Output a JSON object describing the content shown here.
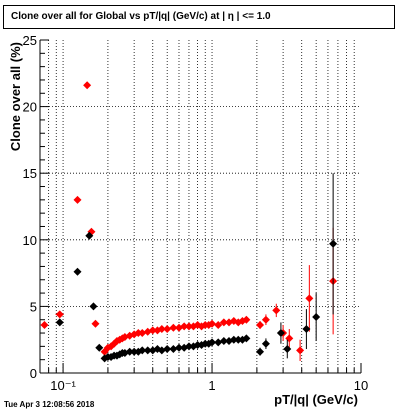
{
  "chart_data": {
    "type": "scatter",
    "title": "Clone  over all for Global vs pT/|q| (GeV/c) at |  η | <= 1.0",
    "xlabel": "pT/|q| (GeV/c)",
    "ylabel": "Clone  over all (%)",
    "xscale": "log",
    "xlim": [
      0.07,
      10
    ],
    "ylim": [
      0,
      25
    ],
    "grid": true,
    "x_tick_labels": [
      {
        "v": 0.1,
        "t": "10⁻¹"
      },
      {
        "v": 1,
        "t": "1"
      },
      {
        "v": 10,
        "t": "10"
      }
    ],
    "y_ticks": [
      0,
      5,
      10,
      15,
      20,
      25
    ],
    "series": [
      {
        "color": "#ff0000",
        "points": [
          {
            "x": 0.075,
            "y": 3.6,
            "xerr": 0.004
          },
          {
            "x": 0.095,
            "y": 4.4,
            "xerr": 0.006
          },
          {
            "x": 0.125,
            "y": 13.0,
            "xerr": 0.006
          },
          {
            "x": 0.145,
            "y": 21.6,
            "xerr": 0
          },
          {
            "x": 0.155,
            "y": 10.6,
            "xerr": 0
          },
          {
            "x": 0.165,
            "y": 3.7,
            "xerr": 0
          },
          {
            "x": 0.19,
            "y": 1.6
          },
          {
            "x": 0.2,
            "y": 1.9
          },
          {
            "x": 0.21,
            "y": 2.0
          },
          {
            "x": 0.22,
            "y": 2.2
          },
          {
            "x": 0.23,
            "y": 2.4
          },
          {
            "x": 0.24,
            "y": 2.5
          },
          {
            "x": 0.25,
            "y": 2.6
          },
          {
            "x": 0.26,
            "y": 2.7
          },
          {
            "x": 0.28,
            "y": 2.8
          },
          {
            "x": 0.3,
            "y": 2.9
          },
          {
            "x": 0.32,
            "y": 3.0
          },
          {
            "x": 0.34,
            "y": 3.0
          },
          {
            "x": 0.37,
            "y": 3.1
          },
          {
            "x": 0.4,
            "y": 3.2
          },
          {
            "x": 0.43,
            "y": 3.2
          },
          {
            "x": 0.46,
            "y": 3.3
          },
          {
            "x": 0.5,
            "y": 3.3
          },
          {
            "x": 0.55,
            "y": 3.4
          },
          {
            "x": 0.6,
            "y": 3.4
          },
          {
            "x": 0.65,
            "y": 3.5
          },
          {
            "x": 0.7,
            "y": 3.5
          },
          {
            "x": 0.75,
            "y": 3.5
          },
          {
            "x": 0.8,
            "y": 3.6
          },
          {
            "x": 0.85,
            "y": 3.5
          },
          {
            "x": 0.9,
            "y": 3.6
          },
          {
            "x": 0.95,
            "y": 3.6
          },
          {
            "x": 1.0,
            "y": 3.7
          },
          {
            "x": 1.1,
            "y": 3.6
          },
          {
            "x": 1.2,
            "y": 3.8
          },
          {
            "x": 1.3,
            "y": 3.8
          },
          {
            "x": 1.4,
            "y": 3.9
          },
          {
            "x": 1.5,
            "y": 3.8
          },
          {
            "x": 1.6,
            "y": 3.9
          },
          {
            "x": 1.7,
            "y": 4.0
          },
          {
            "x": 2.1,
            "y": 3.6,
            "yerr": 0.3
          },
          {
            "x": 2.3,
            "y": 4.0,
            "yerr": 0.4
          },
          {
            "x": 2.7,
            "y": 4.7,
            "yerr": 0.5
          },
          {
            "x": 3.0,
            "y": 3.0,
            "yerr": 0.6
          },
          {
            "x": 3.3,
            "y": 2.6,
            "yerr": 0.7
          },
          {
            "x": 3.9,
            "y": 1.7,
            "yerr": 0.8
          },
          {
            "x": 4.5,
            "y": 5.6,
            "yerr": 2.5
          },
          {
            "x": 6.5,
            "y": 6.9,
            "yerr": 4.0
          }
        ]
      },
      {
        "color": "#000000",
        "points": [
          {
            "x": 0.095,
            "y": 3.8,
            "xerr": 0.006
          },
          {
            "x": 0.125,
            "y": 7.6,
            "xerr": 0.006
          },
          {
            "x": 0.15,
            "y": 10.3,
            "xerr": 0.006
          },
          {
            "x": 0.16,
            "y": 5.0,
            "xerr": 0
          },
          {
            "x": 0.175,
            "y": 1.9,
            "xerr": 0
          },
          {
            "x": 0.19,
            "y": 1.1
          },
          {
            "x": 0.2,
            "y": 1.2
          },
          {
            "x": 0.21,
            "y": 1.2
          },
          {
            "x": 0.22,
            "y": 1.3
          },
          {
            "x": 0.23,
            "y": 1.3
          },
          {
            "x": 0.24,
            "y": 1.4
          },
          {
            "x": 0.25,
            "y": 1.5
          },
          {
            "x": 0.26,
            "y": 1.5
          },
          {
            "x": 0.28,
            "y": 1.6
          },
          {
            "x": 0.3,
            "y": 1.6
          },
          {
            "x": 0.32,
            "y": 1.6
          },
          {
            "x": 0.34,
            "y": 1.7
          },
          {
            "x": 0.37,
            "y": 1.7
          },
          {
            "x": 0.4,
            "y": 1.7
          },
          {
            "x": 0.43,
            "y": 1.8
          },
          {
            "x": 0.46,
            "y": 1.7
          },
          {
            "x": 0.5,
            "y": 1.8
          },
          {
            "x": 0.55,
            "y": 1.8
          },
          {
            "x": 0.6,
            "y": 1.9
          },
          {
            "x": 0.65,
            "y": 1.9
          },
          {
            "x": 0.7,
            "y": 2.0
          },
          {
            "x": 0.75,
            "y": 2.0
          },
          {
            "x": 0.8,
            "y": 2.1
          },
          {
            "x": 0.85,
            "y": 2.1
          },
          {
            "x": 0.9,
            "y": 2.2
          },
          {
            "x": 0.95,
            "y": 2.2
          },
          {
            "x": 1.0,
            "y": 2.3
          },
          {
            "x": 1.1,
            "y": 2.3
          },
          {
            "x": 1.2,
            "y": 2.4
          },
          {
            "x": 1.3,
            "y": 2.4
          },
          {
            "x": 1.4,
            "y": 2.5
          },
          {
            "x": 1.5,
            "y": 2.5
          },
          {
            "x": 1.6,
            "y": 2.5
          },
          {
            "x": 1.7,
            "y": 2.6
          },
          {
            "x": 2.1,
            "y": 1.6,
            "yerr": 0.3
          },
          {
            "x": 2.3,
            "y": 2.2,
            "yerr": 0.4
          },
          {
            "x": 2.9,
            "y": 3.0,
            "yerr": 0.8
          },
          {
            "x": 3.2,
            "y": 1.8,
            "yerr": 0.7
          },
          {
            "x": 4.3,
            "y": 3.3,
            "yerr": 1.5
          },
          {
            "x": 5.0,
            "y": 4.2,
            "yerr": 1.8
          },
          {
            "x": 6.5,
            "y": 9.7,
            "yerr": 5.3
          }
        ]
      }
    ]
  },
  "footer": {
    "timestamp": "Tue Apr  3 12:08:56 2018"
  }
}
